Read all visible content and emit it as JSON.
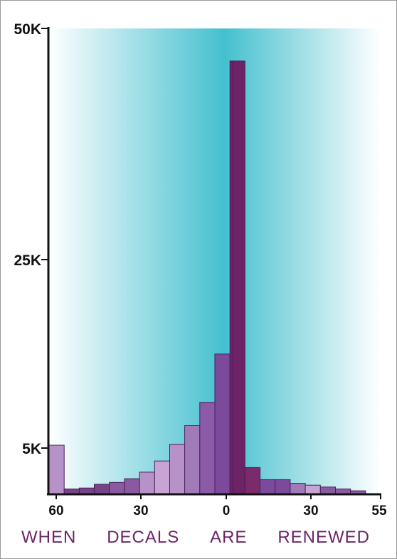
{
  "chart_data": {
    "type": "bar",
    "xlabel_words": [
      "WHEN",
      "DECALS",
      "ARE",
      "RENEWED"
    ],
    "xlabel": "WHEN DECALS ARE RENEWED",
    "x_tick_labels": [
      "60",
      "30",
      "0",
      "30",
      "55"
    ],
    "y_tick_labels": [
      "50K",
      "25K",
      "5K"
    ],
    "y_ticks": [
      50000,
      25000,
      5000
    ],
    "ylim": [
      0,
      50000
    ],
    "bin_width_days": 5,
    "bins": [
      {
        "x_start": -60,
        "x_end": -55,
        "value": 5200,
        "color": "#b792c8"
      },
      {
        "x_start": -55,
        "x_end": -50,
        "value": 500,
        "color": "#744388"
      },
      {
        "x_start": -50,
        "x_end": -45,
        "value": 600,
        "color": "#744388"
      },
      {
        "x_start": -45,
        "x_end": -40,
        "value": 1000,
        "color": "#744388"
      },
      {
        "x_start": -40,
        "x_end": -35,
        "value": 1200,
        "color": "#8a5aa0"
      },
      {
        "x_start": -35,
        "x_end": -30,
        "value": 1600,
        "color": "#8a5aa0"
      },
      {
        "x_start": -30,
        "x_end": -25,
        "value": 2300,
        "color": "#b792c8"
      },
      {
        "x_start": -25,
        "x_end": -20,
        "value": 3500,
        "color": "#c8a4d4"
      },
      {
        "x_start": -20,
        "x_end": -15,
        "value": 5300,
        "color": "#b792c8"
      },
      {
        "x_start": -15,
        "x_end": -10,
        "value": 7300,
        "color": "#a07bb8"
      },
      {
        "x_start": -10,
        "x_end": -5,
        "value": 9800,
        "color": "#8b5ba8"
      },
      {
        "x_start": -5,
        "x_end": 0,
        "value": 15000,
        "color": "#7b4a9a"
      },
      {
        "x_start": 0,
        "x_end": 1,
        "value": 46500,
        "color": "#6c2466"
      },
      {
        "x_start": 1,
        "x_end": 5,
        "value": 46500,
        "color": "#6c2466"
      },
      {
        "x_start": 5,
        "x_end": 10,
        "value": 2800,
        "color": "#7b2a6c"
      },
      {
        "x_start": 10,
        "x_end": 15,
        "value": 1500,
        "color": "#7b4a9a"
      },
      {
        "x_start": 15,
        "x_end": 20,
        "value": 1500,
        "color": "#7b4a9a"
      },
      {
        "x_start": 20,
        "x_end": 25,
        "value": 1100,
        "color": "#a07bb8"
      },
      {
        "x_start": 25,
        "x_end": 30,
        "value": 900,
        "color": "#c8a4d4"
      },
      {
        "x_start": 30,
        "x_end": 35,
        "value": 700,
        "color": "#8a5aa0"
      },
      {
        "x_start": 35,
        "x_end": 40,
        "value": 500,
        "color": "#8a5aa0"
      },
      {
        "x_start": 40,
        "x_end": 45,
        "value": 300,
        "color": "#8a5aa0"
      }
    ],
    "grid": false,
    "legend": "none"
  },
  "colors": {
    "background_center": "#45c0cf",
    "background_edge": "#ffffff",
    "bar_stroke": "#4a1f5a",
    "axis": "#111111",
    "xlabel_color": "#6c2466"
  }
}
